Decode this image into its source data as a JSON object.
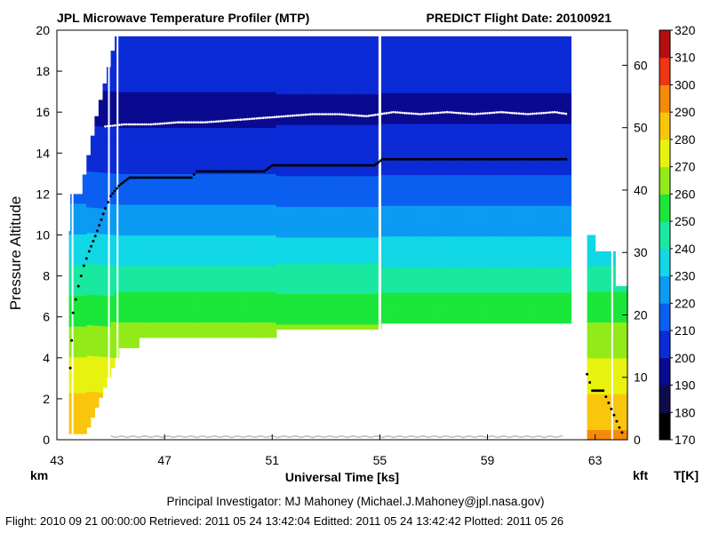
{
  "header": {
    "title_left": "JPL Microwave Temperature Profiler (MTP)",
    "title_right": "PREDICT  Flight Date: 20100921"
  },
  "units": {
    "left_axis_unit": "km",
    "right_axis_unit": "kft",
    "colorbar_unit": "T[K]"
  },
  "footer": {
    "investigator": "Principal Investigator: MJ Mahoney (Michael.J.Mahoney@jpl.nasa.gov)",
    "timestamps": "Flight: 2010 09 21 00:00:00   Retrieved: 2011 05 24 13:42:04   Editted: 2011 05 24 13:42:42   Plotted: 2011 05 26"
  },
  "colors": {
    "tropopause_marker": "#ffffff",
    "aircraft_altitude": "#000000",
    "ground_trace": "#bbbbbb"
  },
  "chart_data": {
    "type": "heatmap",
    "title": "JPL Microwave Temperature Profiler (MTP)",
    "xlabel": "Universal Time [ks]",
    "ylabel": "Pressure Altitude",
    "xlim": [
      43,
      64.2
    ],
    "ylim": [
      0,
      20
    ],
    "x_ticks": [
      43,
      47,
      51,
      55,
      59,
      63
    ],
    "y_ticks": [
      0,
      2,
      4,
      6,
      8,
      10,
      12,
      14,
      16,
      18,
      20
    ],
    "y2_ticks": [
      0,
      10,
      20,
      30,
      40,
      50,
      60
    ],
    "colorbar": {
      "label": "T[K]",
      "ticks": [
        170,
        180,
        190,
        200,
        210,
        220,
        230,
        240,
        250,
        260,
        270,
        280,
        290,
        300,
        310,
        320
      ],
      "range": [
        170,
        320
      ]
    },
    "aircraft_altitude_km": {
      "x": [
        43.5,
        43.6,
        43.8,
        44.0,
        44.2,
        44.5,
        44.8,
        45.0,
        45.3,
        45.7,
        46.0,
        48.0,
        48.2,
        50.7,
        51.0,
        54.8,
        55.1,
        62.0
      ],
      "y": [
        3.5,
        6.2,
        7.5,
        8.5,
        9.2,
        10.2,
        11.3,
        11.9,
        12.4,
        12.8,
        12.8,
        12.8,
        13.1,
        13.1,
        13.4,
        13.4,
        13.7,
        13.7
      ]
    },
    "aircraft_altitude_descent_km": {
      "x": [
        62.7,
        62.9,
        63.3,
        63.5,
        63.7,
        63.9,
        64.1
      ],
      "y": [
        3.2,
        2.4,
        2.4,
        1.8,
        1.2,
        0.6,
        0.1
      ]
    },
    "tropopause_km": {
      "x": [
        44.8,
        45.5,
        46.5,
        47.5,
        48.5,
        49.5,
        50.5,
        51.5,
        52.5,
        53.5,
        54.5,
        55.5,
        56.5,
        57.5,
        58.5,
        59.5,
        60.5,
        61.5,
        62.0
      ],
      "y": [
        15.3,
        15.4,
        15.4,
        15.5,
        15.5,
        15.6,
        15.7,
        15.8,
        15.9,
        15.9,
        15.8,
        16.0,
        15.9,
        16.0,
        15.9,
        16.0,
        15.9,
        16.0,
        15.9
      ]
    },
    "temperature_profile": {
      "altitude_km": [
        0,
        2,
        4,
        6,
        8,
        10,
        12,
        14,
        16,
        18,
        19.7
      ],
      "temperature_K": [
        292,
        282,
        270,
        258,
        244,
        230,
        216,
        204,
        198,
        202,
        208
      ]
    }
  }
}
